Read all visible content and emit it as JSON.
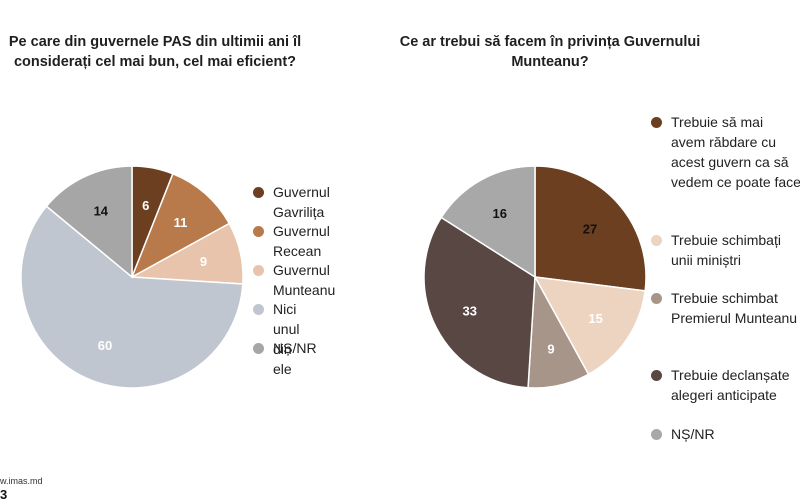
{
  "chart_data": [
    {
      "type": "pie",
      "title": "Pe care din guvernele PAS din ultimii ani îl considerați cel mai bun, cel mai eficient?",
      "labels": [
        "Guvernul Gavrilița",
        "Guvernul Recean",
        "Guvernul Munteanu",
        "Nici unul din ele",
        "NȘ/NR"
      ],
      "values": [
        6,
        11,
        9,
        60,
        14
      ],
      "colors": [
        "#6b3f1f",
        "#b87a4b",
        "#e8c4ad",
        "#c0c6d0",
        "#a6a6a6"
      ],
      "label_colors": [
        "#ffffff",
        "#ffffff",
        "#ffffff",
        "#ffffff",
        "#111111"
      ],
      "legend": "right"
    },
    {
      "type": "pie",
      "title": "Ce ar trebui să facem în privința Guvernului Munteanu?",
      "labels": [
        "Trebuie să mai avem răbdare cu acest guvern ca să vedem ce poate face",
        "Trebuie schimbați unii miniștri",
        "Trebuie schimbat Premierul Munteanu",
        "Trebuie declanșate alegeri anticipate",
        "NȘ/NR"
      ],
      "values": [
        27,
        15,
        9,
        33,
        16
      ],
      "colors": [
        "#6b3f1f",
        "#ecd4c1",
        "#a8958a",
        "#584742",
        "#a8a8a8"
      ],
      "label_colors": [
        "#111111",
        "#ffffff",
        "#ffffff",
        "#ffffff",
        "#111111"
      ],
      "legend": "right"
    }
  ],
  "footer": {
    "source": "w.imas.md",
    "page": "3"
  }
}
